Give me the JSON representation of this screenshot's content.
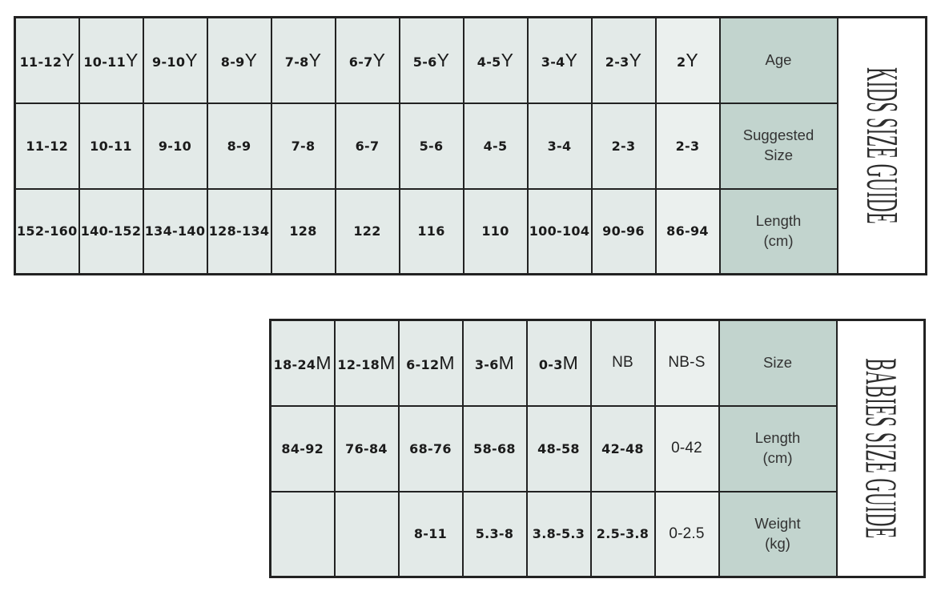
{
  "page": {
    "background_color": "#ffffff",
    "cell_bg_color": "#e3eae8",
    "light_cell_bg_color": "#ebf0ee",
    "header_bg_color": "#c2d4ce",
    "border_color": "#222222",
    "text_color": "#1b1b1b"
  },
  "kids_table": {
    "title": "KIDS SIZE GUIDE",
    "rows": [
      {
        "label": "Age",
        "label_lines": [
          "Age"
        ],
        "cells": [
          "11-12Y",
          "10-11Y",
          "9-10Y",
          "8-9Y",
          "7-8Y",
          "6-7Y",
          "5-6Y",
          "4-5Y",
          "3-4Y",
          "2-3Y",
          "2Y"
        ]
      },
      {
        "label": "Suggested Size",
        "label_lines": [
          "Suggested",
          "Size"
        ],
        "cells": [
          "11-12",
          "10-11",
          "9-10",
          "8-9",
          "7-8",
          "6-7",
          "5-6",
          "4-5",
          "3-4",
          "2-3",
          "2-3"
        ]
      },
      {
        "label": "Length (cm)",
        "label_lines": [
          "Length",
          "(cm)"
        ],
        "cells": [
          "152-160",
          "140-152",
          "134-140",
          "128-134",
          "128",
          "122",
          "116",
          "110",
          "100-104",
          "90-96",
          "86-94"
        ]
      }
    ],
    "plain_cells": [],
    "light_column": 10
  },
  "babies_table": {
    "title": "BABIES SIZE GUIDE",
    "rows": [
      {
        "label": "Size",
        "label_lines": [
          "Size"
        ],
        "cells": [
          "18-24M",
          "12-18M",
          "6-12M",
          "3-6M",
          "0-3M",
          "NB",
          "NB-S"
        ]
      },
      {
        "label": "Length (cm)",
        "label_lines": [
          "Length",
          "(cm)"
        ],
        "cells": [
          "84-92",
          "76-84",
          "68-76",
          "58-68",
          "48-58",
          "42-48",
          "0-42"
        ]
      },
      {
        "label": "Weight (kg)",
        "label_lines": [
          "Weight",
          "(kg)"
        ],
        "cells": [
          "",
          "",
          "8-11",
          "5.3-8",
          "3.8-5.3",
          "2.5-3.8",
          "0-2.5"
        ]
      }
    ],
    "plain_cells": [
      [
        0,
        5
      ],
      [
        0,
        6
      ],
      [
        1,
        6
      ],
      [
        2,
        6
      ]
    ],
    "light_column": 6
  }
}
